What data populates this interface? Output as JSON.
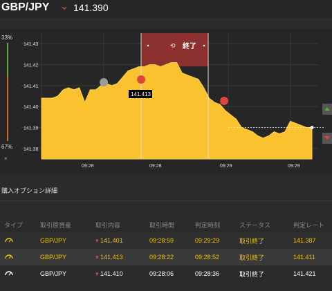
{
  "header": {
    "pair": "GBP/JPY",
    "price": "141.390",
    "direction_icon": "down-arrow-icon",
    "down_color": "#e0443c"
  },
  "gauge": {
    "top_pct": "33%",
    "bottom_pct": "67%",
    "close_label": "×"
  },
  "chart": {
    "y_ticks": [
      "141.43",
      "141.42",
      "141.41",
      "141.40",
      "141.39",
      "141.38"
    ],
    "x_ticks": [
      "09:28",
      "09:28",
      "09:29",
      "09:29"
    ],
    "end_label": "終了",
    "marker_price": "141.413",
    "fill_color": "#f9c22e",
    "highlight_color": "#8b2f2f"
  },
  "chart_data": {
    "type": "area",
    "ylim": [
      141.375,
      141.435
    ],
    "x": [
      0,
      2,
      4,
      6,
      8,
      10,
      12,
      14,
      16,
      18,
      20,
      22,
      24,
      26,
      28,
      30,
      32,
      34,
      36,
      38,
      40,
      42,
      44,
      46,
      48,
      50,
      52,
      54,
      56,
      58,
      60,
      62,
      64,
      66,
      68,
      70,
      72,
      74,
      76,
      78,
      80,
      82,
      84,
      86,
      88,
      90,
      92,
      94,
      96,
      98,
      100
    ],
    "values": [
      141.404,
      141.404,
      141.404,
      141.405,
      141.408,
      141.409,
      141.408,
      141.409,
      141.402,
      141.408,
      141.408,
      141.41,
      141.411,
      141.41,
      141.411,
      141.414,
      141.417,
      141.418,
      141.419,
      141.419,
      141.42,
      141.42,
      141.419,
      141.42,
      141.421,
      141.421,
      141.416,
      141.415,
      141.414,
      141.413,
      141.409,
      141.404,
      141.402,
      141.401,
      141.398,
      141.396,
      141.394,
      141.39,
      141.389,
      141.388,
      141.386,
      141.385,
      141.386,
      141.388,
      141.387,
      141.388,
      141.393,
      141.392,
      141.391,
      141.39,
      141.39
    ],
    "current_price": 141.39
  },
  "details": {
    "title": "購入オプション詳細",
    "columns": [
      "タイプ",
      "取引原資産",
      "取引内容",
      "取引時間",
      "判定時刻",
      "ステータス",
      "判定レート"
    ],
    "rows": [
      {
        "type_icon": "gauge-icon",
        "asset": "GBP/JPY",
        "direction_icon": "down-arrow-icon",
        "price": "141.401",
        "time": "09:28:59",
        "judge": "09:29:29",
        "status": "取引終了",
        "rate": "141.387"
      },
      {
        "type_icon": "gauge-icon",
        "asset": "GBP/JPY",
        "direction_icon": "down-arrow-icon",
        "price": "141.413",
        "time": "09:28:22",
        "judge": "09:28:52",
        "status": "取引終了",
        "rate": "141.411"
      },
      {
        "type_icon": "gauge-icon",
        "asset": "GBP/JPY",
        "direction_icon": "down-arrow-icon",
        "price": "141.410",
        "time": "09:28:06",
        "judge": "09:28:36",
        "status": "取引終了",
        "rate": "141.421"
      }
    ]
  }
}
